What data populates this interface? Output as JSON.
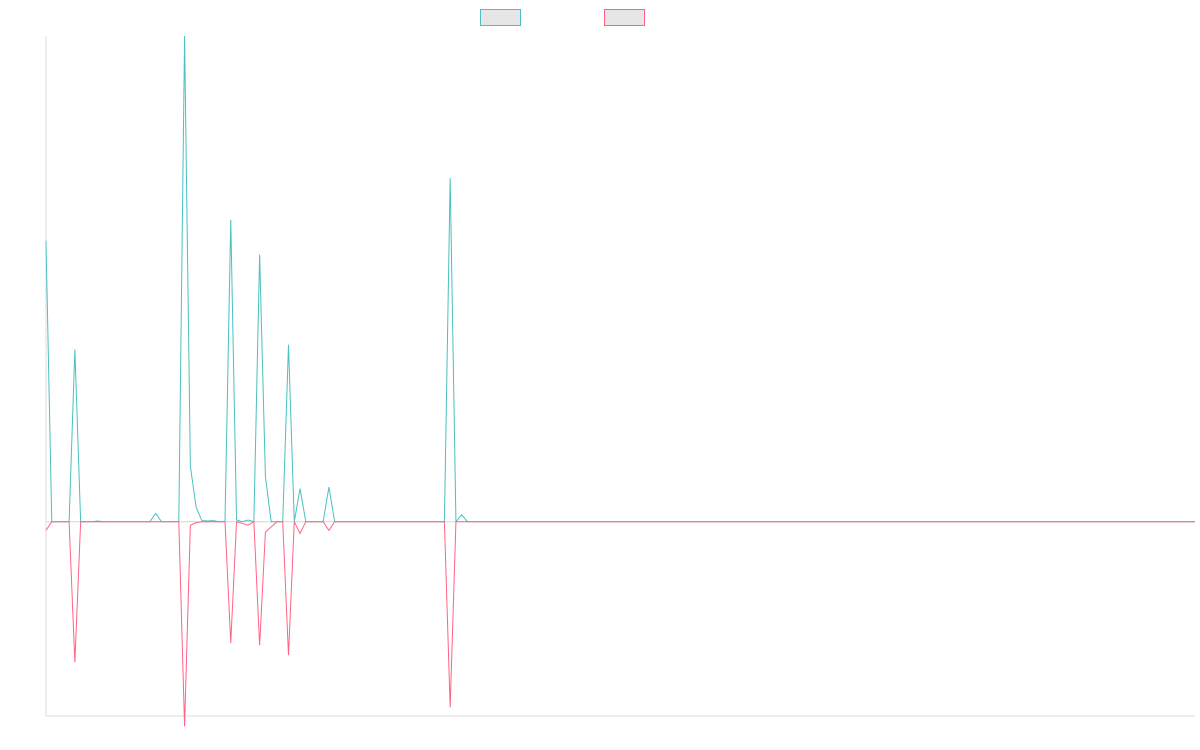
{
  "chart_data": {
    "type": "line",
    "title": "",
    "xlabel": "",
    "ylabel": "",
    "grid": false,
    "legend_position": "top-center",
    "axis_color": "#dddddd",
    "n_points": 200,
    "baseline": 0,
    "ylim": [
      -56,
      140
    ],
    "series": [
      {
        "color": "#4bc0c0",
        "fill": "#e6e6e6",
        "spikes": [
          [
            0,
            81
          ],
          [
            1,
            0
          ],
          [
            5,
            49.6
          ],
          [
            6,
            0
          ],
          [
            9,
            0.2
          ],
          [
            19,
            2.4
          ],
          [
            20,
            0
          ],
          [
            23,
            0.1
          ],
          [
            24,
            140
          ],
          [
            25,
            16
          ],
          [
            26,
            4.2
          ],
          [
            27,
            0.3
          ],
          [
            28,
            0.2
          ],
          [
            29,
            0.3
          ],
          [
            30,
            0
          ],
          [
            31,
            0
          ],
          [
            32,
            87
          ],
          [
            33,
            0.5
          ],
          [
            34,
            0
          ],
          [
            35,
            0.5
          ],
          [
            36,
            0
          ],
          [
            37,
            77
          ],
          [
            38,
            13
          ],
          [
            39,
            0
          ],
          [
            40,
            0
          ],
          [
            41,
            0
          ],
          [
            42,
            51
          ],
          [
            43,
            0
          ],
          [
            44,
            9.5
          ],
          [
            45,
            0
          ],
          [
            46,
            0
          ],
          [
            47,
            0
          ],
          [
            48,
            0
          ],
          [
            49,
            10
          ],
          [
            50,
            0
          ],
          [
            51,
            0
          ],
          [
            52,
            0
          ],
          [
            53,
            0
          ],
          [
            54,
            0
          ],
          [
            55,
            0
          ],
          [
            56,
            0
          ],
          [
            57,
            0
          ],
          [
            58,
            0
          ],
          [
            59,
            0
          ],
          [
            60,
            0
          ],
          [
            61,
            0
          ],
          [
            62,
            0
          ],
          [
            63,
            0
          ],
          [
            64,
            0
          ],
          [
            65,
            0
          ],
          [
            66,
            0
          ],
          [
            67,
            0
          ],
          [
            68,
            0
          ],
          [
            69,
            0
          ],
          [
            70,
            99
          ],
          [
            71,
            0
          ],
          [
            72,
            2
          ],
          [
            73,
            0
          ],
          [
            199,
            0
          ]
        ]
      },
      {
        "color": "#ff6384",
        "fill": "#e6e6e6",
        "spikes": [
          [
            0,
            -2.5
          ],
          [
            1,
            0
          ],
          [
            5,
            -40.5
          ],
          [
            6,
            0
          ],
          [
            23,
            0
          ],
          [
            24,
            -59
          ],
          [
            25,
            -1
          ],
          [
            26,
            -0.3
          ],
          [
            27,
            0
          ],
          [
            31,
            0
          ],
          [
            32,
            -35
          ],
          [
            33,
            0
          ],
          [
            34,
            -0.5
          ],
          [
            35,
            -1
          ],
          [
            36,
            0
          ],
          [
            37,
            -35.6
          ],
          [
            38,
            -3
          ],
          [
            39,
            -1.5
          ],
          [
            40,
            0
          ],
          [
            41,
            0
          ],
          [
            42,
            -38.5
          ],
          [
            43,
            0
          ],
          [
            44,
            -3.4
          ],
          [
            45,
            0
          ],
          [
            48,
            0
          ],
          [
            49,
            -2.5
          ],
          [
            50,
            0
          ],
          [
            69,
            0
          ],
          [
            70,
            -53.5
          ],
          [
            71,
            0
          ],
          [
            199,
            0
          ]
        ]
      }
    ]
  }
}
